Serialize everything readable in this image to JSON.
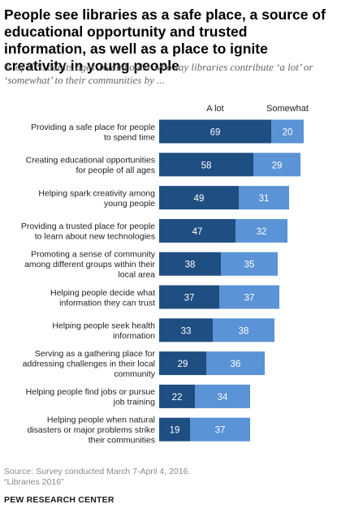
{
  "title": "People see libraries as a safe place, a source of educational opportunity and trusted information, as well as a place to ignite creativity in young people",
  "subtitle": "% of U.S. adults ages 16 and older who say libraries contribute ‘a lot’ or ‘somewhat’ to their communities by ...",
  "note": {
    "source": "Source: Survey conducted March 7-April 4, 2016.",
    "report": "“Libraries 2016”"
  },
  "org": "PEW RESEARCH CENTER",
  "colors": {
    "a_lot": "#1f4e82",
    "somewhat": "#5a93d6",
    "label_text": "#222222"
  },
  "chart_data": {
    "type": "bar",
    "orientation": "horizontal",
    "stacked": true,
    "categories": [
      [
        "Providing a safe place for people",
        "to spend time"
      ],
      [
        "Creating educational opportunities",
        "for people of all ages"
      ],
      [
        "Helping spark creativity among",
        "young people"
      ],
      [
        "Providing a trusted place for people",
        "to learn about new technologies"
      ],
      [
        "Promoting a sense of community",
        "among different groups within their",
        "local area"
      ],
      [
        "Helping people decide what",
        "information they can trust"
      ],
      [
        "Helping people seek health",
        "information"
      ],
      [
        "Serving as a gathering place for",
        "addressing challenges in their local",
        "community"
      ],
      [
        "Helping people find jobs or pursue",
        "job training"
      ],
      [
        "Helping people when natural",
        "disasters or major problems strike",
        "their communities"
      ]
    ],
    "series": [
      {
        "name": "A lot",
        "values": [
          69,
          58,
          49,
          47,
          38,
          37,
          33,
          29,
          22,
          19
        ]
      },
      {
        "name": "Somewhat",
        "values": [
          20,
          29,
          31,
          32,
          35,
          37,
          38,
          36,
          34,
          37
        ]
      }
    ],
    "legend_placement": "top",
    "grid": false,
    "xlim": [
      0,
      100
    ]
  }
}
